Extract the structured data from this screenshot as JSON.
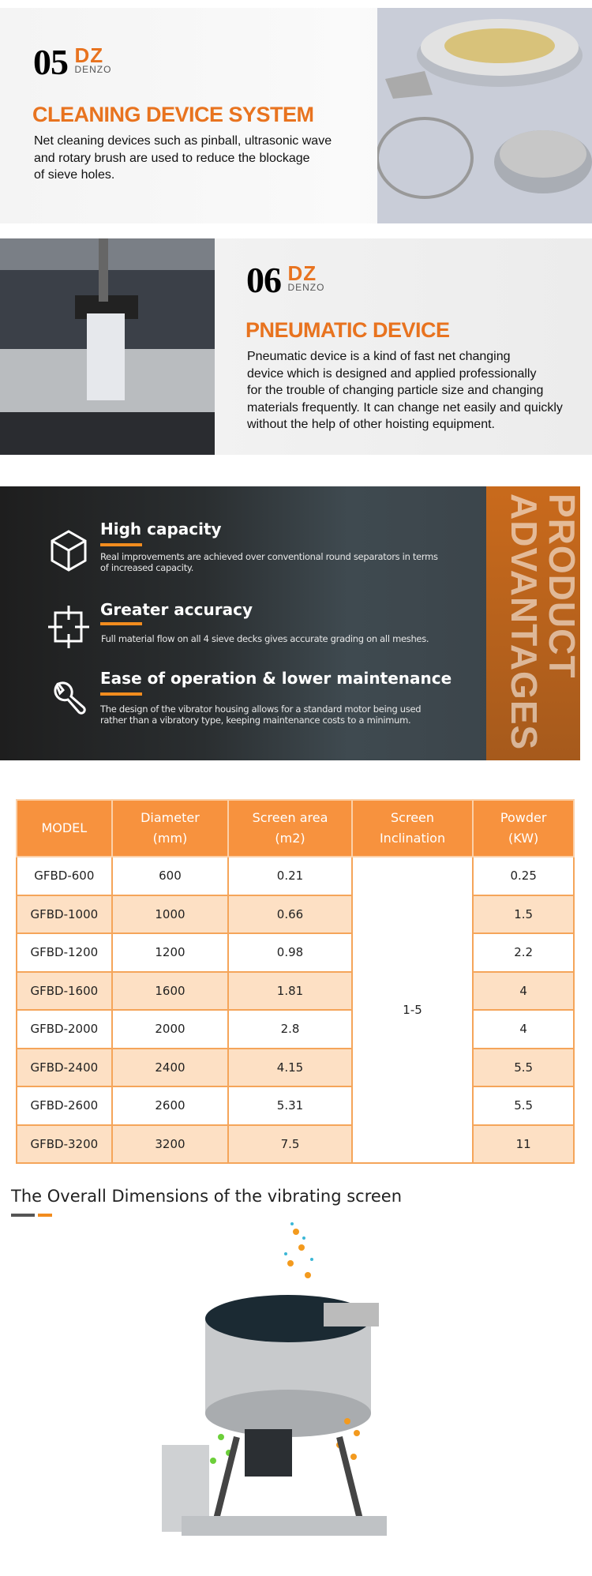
{
  "section_cleaning": {
    "number": "05",
    "logo_text": "DZ",
    "logo_sub": "DENZO",
    "title": "CLEANING DEVICE SYSTEM",
    "lines": [
      "Net cleaning devices such as pinball, ultrasonic wave",
      "and rotary brush are used to reduce the blockage",
      "of sieve holes."
    ]
  },
  "section_pneumatic": {
    "number": "06",
    "logo_text": "DZ",
    "logo_sub": "DENZO",
    "title": "PNEUMATIC DEVICE",
    "lines": [
      "Pneumatic device is a kind of fast net changing",
      "device which is designed and applied professionally",
      "for the trouble of changing particle size and changing",
      "materials frequently. It can change net easily and quickly",
      "without the help of other hoisting equipment."
    ]
  },
  "advantages": {
    "band_lines": [
      "PRODUCT",
      "ADVANTAGES"
    ],
    "items": [
      {
        "icon": "cube-icon",
        "title": "High capacity",
        "desc": [
          "Real improvements are achieved over conventional round separators in terms",
          "of increased capacity."
        ]
      },
      {
        "icon": "crosshair-square-icon",
        "title": "Greater accuracy",
        "desc": [
          "Full material flow on all 4 sieve decks gives accurate grading on all meshes."
        ]
      },
      {
        "icon": "wrench-icon",
        "title": "Ease of operation & lower maintenance",
        "desc": [
          "The design of the vibrator housing allows for a standard motor being used",
          "rather than a vibratory type, keeping maintenance costs to a minimum."
        ]
      }
    ]
  },
  "table": {
    "headers": [
      [
        "MODEL"
      ],
      [
        "Diameter",
        "(mm)"
      ],
      [
        "Screen area",
        "(m2)"
      ],
      [
        "Screen",
        "Inclination"
      ],
      [
        "Powder",
        "(KW)"
      ]
    ],
    "inclination": "1-5",
    "rows": [
      [
        "GFBD-600",
        "600",
        "0.21",
        "0.25"
      ],
      [
        "GFBD-1000",
        "1000",
        "0.66",
        "1.5"
      ],
      [
        "GFBD-1200",
        "1200",
        "0.98",
        "2.2"
      ],
      [
        "GFBD-1600",
        "1600",
        "1.81",
        "4"
      ],
      [
        "GFBD-2000",
        "2000",
        "2.8",
        "4"
      ],
      [
        "GFBD-2400",
        "2400",
        "4.15",
        "5.5"
      ],
      [
        "GFBD-2600",
        "2600",
        "5.31",
        "5.5"
      ],
      [
        "GFBD-3200",
        "3200",
        "7.5",
        "11"
      ]
    ]
  },
  "dimensions": {
    "heading": "The Overall Dimensions of the vibrating screen"
  },
  "colors": {
    "accent": "#e8731f",
    "header": "#f7923e",
    "alt_row": "#fde0c4"
  }
}
